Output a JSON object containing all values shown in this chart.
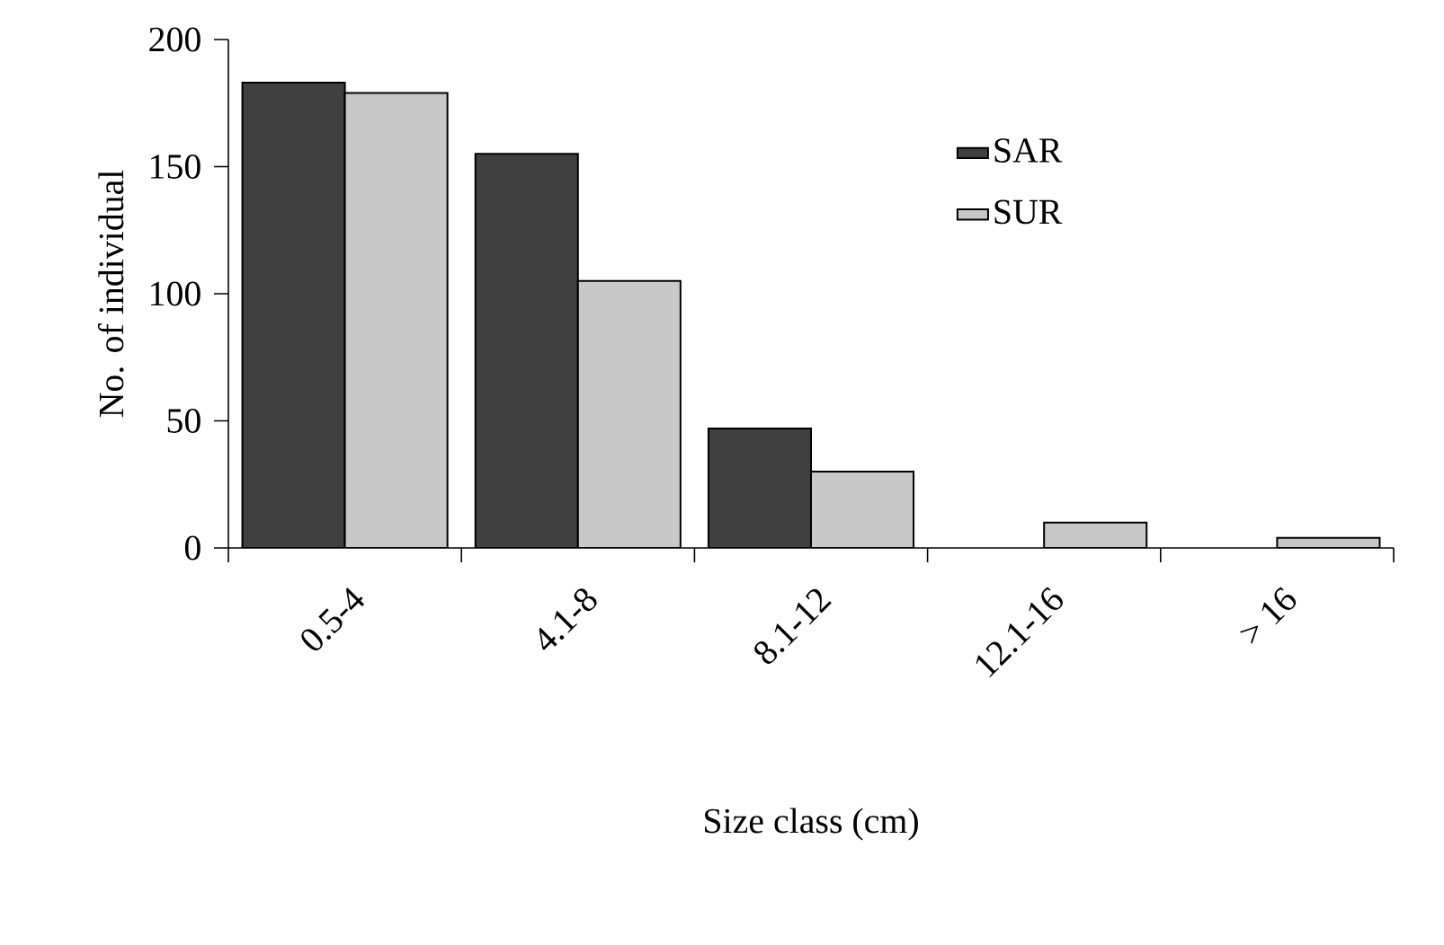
{
  "chart_data": {
    "type": "bar",
    "xlabel": "Size class (cm)",
    "ylabel": "No. of individual",
    "categories": [
      "0.5-4",
      "4.1-8",
      "8.1-12",
      "12.1-16",
      "> 16"
    ],
    "series": [
      {
        "name": "SAR",
        "color": "#404040",
        "values": [
          183,
          155,
          47,
          null,
          null
        ]
      },
      {
        "name": "SUR",
        "color": "#c8c8c8",
        "values": [
          179,
          105,
          30,
          10,
          4
        ]
      }
    ],
    "ylim": [
      0,
      200
    ],
    "yticks": [
      0,
      50,
      100,
      150,
      200
    ],
    "legend": "right",
    "grid": false
  }
}
